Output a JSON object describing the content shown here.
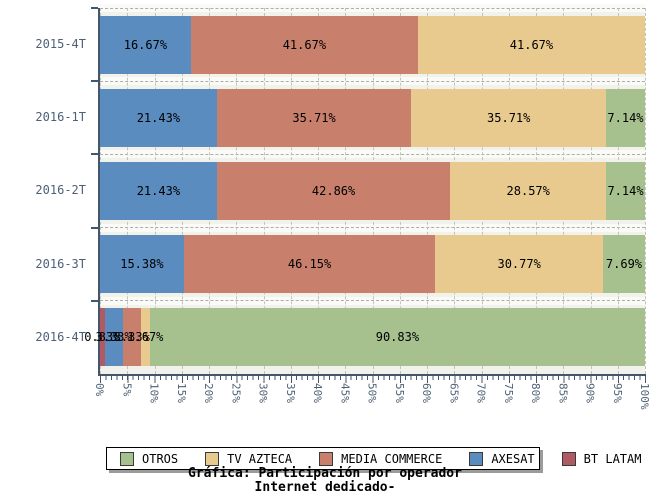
{
  "chart_data": {
    "type": "bar",
    "orientation": "horizontal-stacked",
    "title": "Gráfica: Participación por operador",
    "subtitle": "Internet dedicado-",
    "categories": [
      "2015-4T",
      "2016-1T",
      "2016-2T",
      "2016-3T",
      "2016-4T"
    ],
    "stack_order": [
      "BT LATAM",
      "AXESAT",
      "MEDIA COMMERCE",
      "TV AZTECA",
      "OTROS"
    ],
    "series": [
      {
        "name": "OTROS",
        "color": "#a6c08e",
        "values": [
          0,
          7.14,
          7.14,
          7.69,
          90.83
        ],
        "labels": [
          "",
          "7.14%",
          "7.14%",
          "7.69%",
          "90.83%"
        ]
      },
      {
        "name": "TV AZTECA",
        "color": "#e9ca8e",
        "values": [
          41.67,
          35.71,
          28.57,
          30.77,
          1.67
        ],
        "labels": [
          "41.67%",
          "35.71%",
          "28.57%",
          "30.77%",
          "1.67%"
        ]
      },
      {
        "name": "MEDIA COMMERCE",
        "color": "#c8806c",
        "values": [
          41.67,
          35.71,
          42.86,
          46.15,
          3.33
        ],
        "labels": [
          "41.67%",
          "35.71%",
          "42.86%",
          "46.15%",
          "3.33%"
        ]
      },
      {
        "name": "AXESAT",
        "color": "#5b8cc0",
        "values": [
          16.67,
          21.43,
          21.43,
          15.38,
          3.33
        ],
        "labels": [
          "16.67%",
          "21.43%",
          "21.43%",
          "15.38%",
          "3.33%"
        ]
      },
      {
        "name": "BT LATAM",
        "color": "#b05a64",
        "values": [
          0,
          0,
          0,
          0,
          0.83
        ],
        "labels": [
          "",
          "",
          "",
          "",
          "0.83%"
        ]
      }
    ],
    "x_axis": {
      "min": 0,
      "max": 100,
      "major_step": 5,
      "minor_step": 1,
      "tick_labels": [
        "0%",
        "5%",
        "10%",
        "15%",
        "20%",
        "25%",
        "30%",
        "35%",
        "40%",
        "45%",
        "50%",
        "55%",
        "60%",
        "65%",
        "70%",
        "75%",
        "80%",
        "85%",
        "90%",
        "95%",
        "100%"
      ]
    },
    "legend": {
      "position": "bottom",
      "order": [
        "OTROS",
        "TV AZTECA",
        "MEDIA COMMERCE",
        "AXESAT",
        "BT LATAM"
      ]
    },
    "grid": "dashed",
    "plot_background": "#f2f2ec",
    "axis_color": "#44566b",
    "value_label_color": "#000000"
  }
}
